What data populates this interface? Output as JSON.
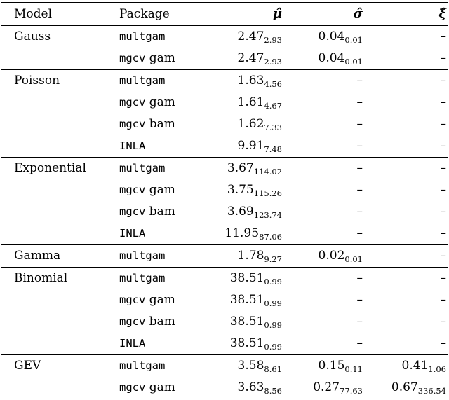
{
  "headers": {
    "model": "Model",
    "package": "Package",
    "mu": "μ̂",
    "sigma": "σ̂",
    "xi": "ξ̂"
  },
  "groups": [
    {
      "model": "Gauss",
      "rows": [
        {
          "pkg_mono": "multgam",
          "pkg_text": "",
          "mu": "2.47",
          "mu_sub": "2.93",
          "sigma": "0.04",
          "sigma_sub": "0.01",
          "xi": "–",
          "xi_sub": ""
        },
        {
          "pkg_mono": "mgcv",
          "pkg_text": " gam",
          "mu": "2.47",
          "mu_sub": "2.93",
          "sigma": "0.04",
          "sigma_sub": "0.01",
          "xi": "–",
          "xi_sub": ""
        }
      ]
    },
    {
      "model": "Poisson",
      "rows": [
        {
          "pkg_mono": "multgam",
          "pkg_text": "",
          "mu": "1.63",
          "mu_sub": "4.56",
          "sigma": "–",
          "sigma_sub": "",
          "xi": "–",
          "xi_sub": ""
        },
        {
          "pkg_mono": "mgcv",
          "pkg_text": " gam",
          "mu": "1.61",
          "mu_sub": "4.67",
          "sigma": "–",
          "sigma_sub": "",
          "xi": "–",
          "xi_sub": ""
        },
        {
          "pkg_mono": "mgcv",
          "pkg_text": " bam",
          "mu": "1.62",
          "mu_sub": "7.33",
          "sigma": "–",
          "sigma_sub": "",
          "xi": "–",
          "xi_sub": ""
        },
        {
          "pkg_mono": "INLA",
          "pkg_text": "",
          "mu": "9.91",
          "mu_sub": "7.48",
          "sigma": "–",
          "sigma_sub": "",
          "xi": "–",
          "xi_sub": ""
        }
      ]
    },
    {
      "model": "Exponential",
      "rows": [
        {
          "pkg_mono": "multgam",
          "pkg_text": "",
          "mu": "3.67",
          "mu_sub": "114.02",
          "sigma": "–",
          "sigma_sub": "",
          "xi": "–",
          "xi_sub": ""
        },
        {
          "pkg_mono": "mgcv",
          "pkg_text": " gam",
          "mu": "3.75",
          "mu_sub": "115.26",
          "sigma": "–",
          "sigma_sub": "",
          "xi": "–",
          "xi_sub": ""
        },
        {
          "pkg_mono": "mgcv",
          "pkg_text": " bam",
          "mu": "3.69",
          "mu_sub": "123.74",
          "sigma": "–",
          "sigma_sub": "",
          "xi": "–",
          "xi_sub": ""
        },
        {
          "pkg_mono": "INLA",
          "pkg_text": "",
          "mu": "11.95",
          "mu_sub": "87.06",
          "sigma": "–",
          "sigma_sub": "",
          "xi": "–",
          "xi_sub": ""
        }
      ]
    },
    {
      "model": "Gamma",
      "rows": [
        {
          "pkg_mono": "multgam",
          "pkg_text": "",
          "mu": "1.78",
          "mu_sub": "9.27",
          "sigma": "0.02",
          "sigma_sub": "0.01",
          "xi": "–",
          "xi_sub": ""
        }
      ]
    },
    {
      "model": "Binomial",
      "rows": [
        {
          "pkg_mono": "multgam",
          "pkg_text": "",
          "mu": "38.51",
          "mu_sub": "0.99",
          "sigma": "–",
          "sigma_sub": "",
          "xi": "–",
          "xi_sub": ""
        },
        {
          "pkg_mono": "mgcv",
          "pkg_text": " gam",
          "mu": "38.51",
          "mu_sub": "0.99",
          "sigma": "–",
          "sigma_sub": "",
          "xi": "–",
          "xi_sub": ""
        },
        {
          "pkg_mono": "mgcv",
          "pkg_text": " bam",
          "mu": "38.51",
          "mu_sub": "0.99",
          "sigma": "–",
          "sigma_sub": "",
          "xi": "–",
          "xi_sub": ""
        },
        {
          "pkg_mono": "INLA",
          "pkg_text": "",
          "mu": "38.51",
          "mu_sub": "0.99",
          "sigma": "–",
          "sigma_sub": "",
          "xi": "–",
          "xi_sub": ""
        }
      ]
    },
    {
      "model": "GEV",
      "rows": [
        {
          "pkg_mono": "multgam",
          "pkg_text": "",
          "mu": "3.58",
          "mu_sub": "8.61",
          "sigma": "0.15",
          "sigma_sub": "0.11",
          "xi": "0.41",
          "xi_sub": "1.06"
        },
        {
          "pkg_mono": "mgcv",
          "pkg_text": " gam",
          "mu": "3.63",
          "mu_sub": "8.56",
          "sigma": "0.27",
          "sigma_sub": "77.63",
          "xi": "0.67",
          "xi_sub": "336.54"
        }
      ]
    }
  ]
}
